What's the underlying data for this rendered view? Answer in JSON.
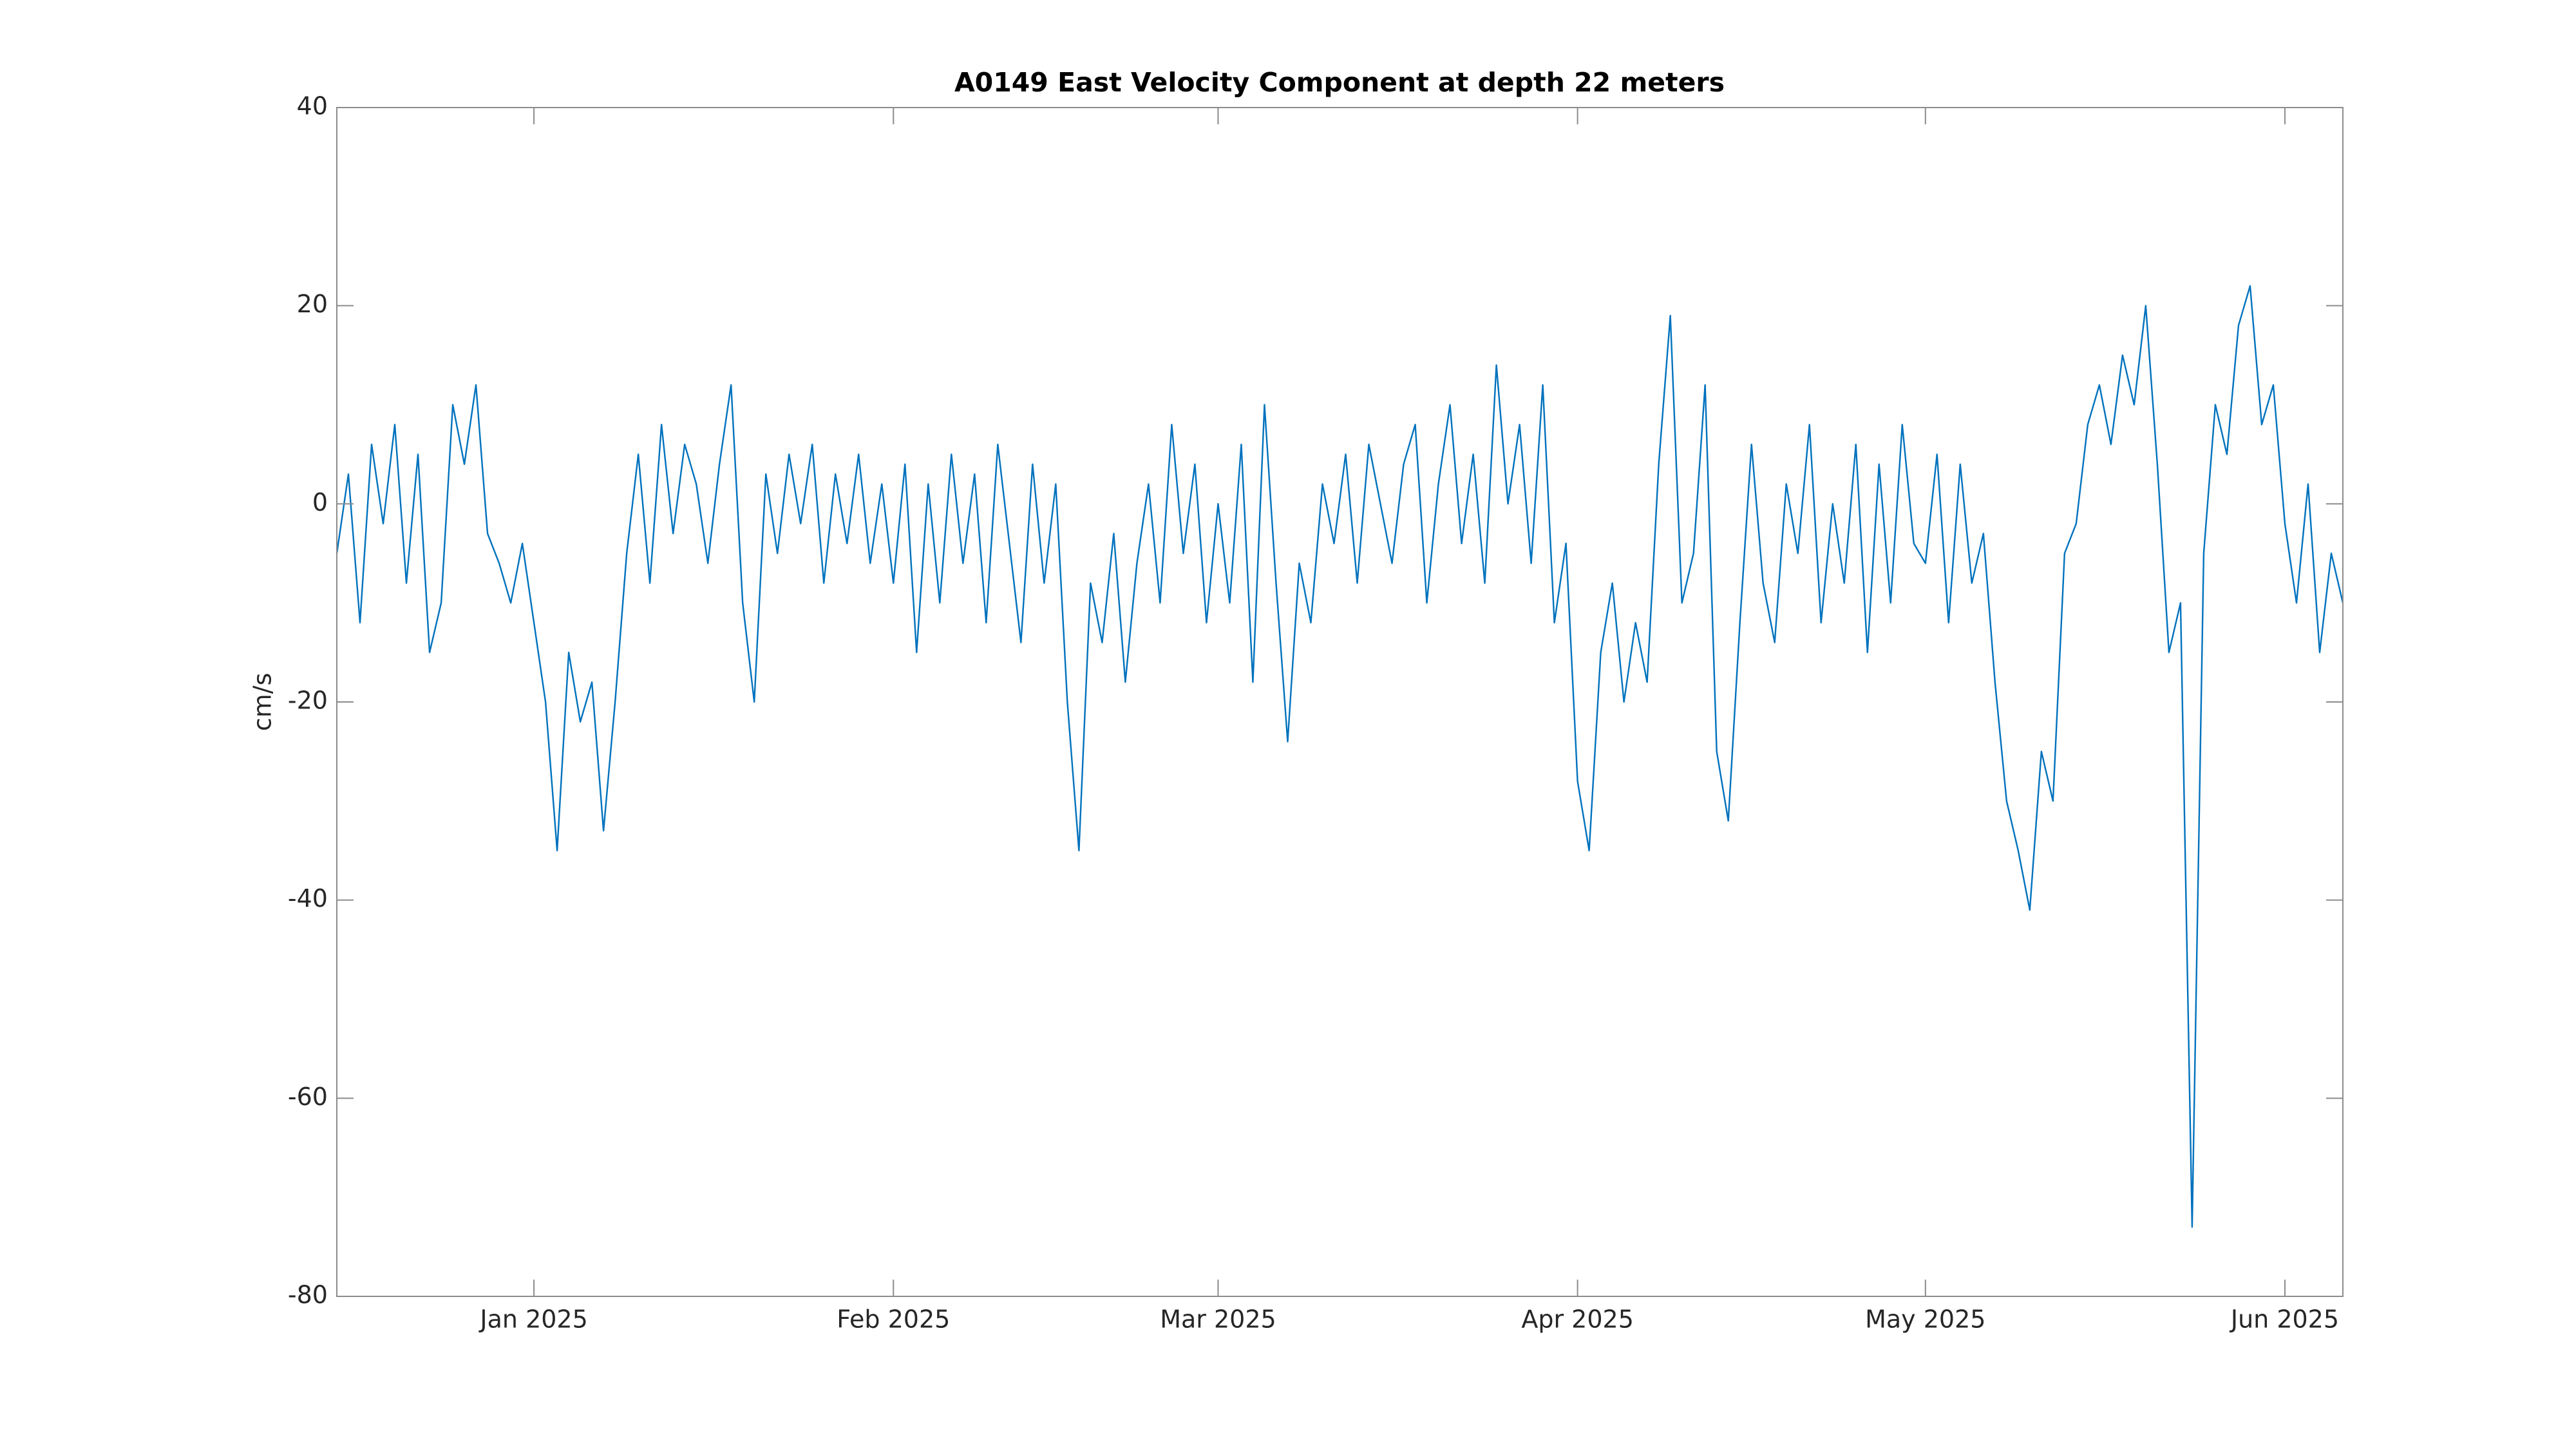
{
  "chart_data": {
    "type": "line",
    "title": "A0149 East Velocity Component at depth 22 meters",
    "ylabel": "cm/s",
    "color": "#0072bd",
    "xlim": [
      "2024-12-15",
      "2025-06-06"
    ],
    "xticks": [
      {
        "value": "2025-01",
        "label": "Jan 2025"
      },
      {
        "value": "2025-02",
        "label": "Feb 2025"
      },
      {
        "value": "2025-03",
        "label": "Mar 2025"
      },
      {
        "value": "2025-04",
        "label": "Apr 2025"
      },
      {
        "value": "2025-05",
        "label": "May 2025"
      },
      {
        "value": "2025-06",
        "label": "Jun 2025"
      }
    ],
    "ylim": [
      -80,
      40
    ],
    "yticks": [
      -80,
      -60,
      -40,
      -20,
      0,
      20,
      40
    ],
    "grid": false,
    "x": [
      "2024-12-15",
      "2024-12-16",
      "2024-12-17",
      "2024-12-18",
      "2024-12-19",
      "2024-12-20",
      "2024-12-21",
      "2024-12-22",
      "2024-12-23",
      "2024-12-24",
      "2024-12-25",
      "2024-12-26",
      "2024-12-27",
      "2024-12-28",
      "2024-12-29",
      "2024-12-30",
      "2024-12-31",
      "2025-01-01",
      "2025-01-02",
      "2025-01-03",
      "2025-01-04",
      "2025-01-05",
      "2025-01-06",
      "2025-01-07",
      "2025-01-08",
      "2025-01-09",
      "2025-01-10",
      "2025-01-11",
      "2025-01-12",
      "2025-01-13",
      "2025-01-14",
      "2025-01-15",
      "2025-01-16",
      "2025-01-17",
      "2025-01-18",
      "2025-01-19",
      "2025-01-20",
      "2025-01-21",
      "2025-01-22",
      "2025-01-23",
      "2025-01-24",
      "2025-01-25",
      "2025-01-26",
      "2025-01-27",
      "2025-01-28",
      "2025-01-29",
      "2025-01-30",
      "2025-01-31",
      "2025-02-01",
      "2025-02-02",
      "2025-02-03",
      "2025-02-04",
      "2025-02-05",
      "2025-02-06",
      "2025-02-07",
      "2025-02-08",
      "2025-02-09",
      "2025-02-10",
      "2025-02-11",
      "2025-02-12",
      "2025-02-13",
      "2025-02-14",
      "2025-02-15",
      "2025-02-16",
      "2025-02-17",
      "2025-02-18",
      "2025-02-19",
      "2025-02-20",
      "2025-02-21",
      "2025-02-22",
      "2025-02-23",
      "2025-02-24",
      "2025-02-25",
      "2025-02-26",
      "2025-02-27",
      "2025-02-28",
      "2025-03-01",
      "2025-03-02",
      "2025-03-03",
      "2025-03-04",
      "2025-03-05",
      "2025-03-06",
      "2025-03-07",
      "2025-03-08",
      "2025-03-09",
      "2025-03-10",
      "2025-03-11",
      "2025-03-12",
      "2025-03-13",
      "2025-03-14",
      "2025-03-15",
      "2025-03-16",
      "2025-03-17",
      "2025-03-18",
      "2025-03-19",
      "2025-03-20",
      "2025-03-21",
      "2025-03-22",
      "2025-03-23",
      "2025-03-24",
      "2025-03-25",
      "2025-03-26",
      "2025-03-27",
      "2025-03-28",
      "2025-03-29",
      "2025-03-30",
      "2025-03-31",
      "2025-04-01",
      "2025-04-02",
      "2025-04-03",
      "2025-04-04",
      "2025-04-05",
      "2025-04-06",
      "2025-04-07",
      "2025-04-08",
      "2025-04-09",
      "2025-04-10",
      "2025-04-11",
      "2025-04-12",
      "2025-04-13",
      "2025-04-14",
      "2025-04-15",
      "2025-04-16",
      "2025-04-17",
      "2025-04-18",
      "2025-04-19",
      "2025-04-20",
      "2025-04-21",
      "2025-04-22",
      "2025-04-23",
      "2025-04-24",
      "2025-04-25",
      "2025-04-26",
      "2025-04-27",
      "2025-04-28",
      "2025-04-29",
      "2025-04-30",
      "2025-05-01",
      "2025-05-02",
      "2025-05-03",
      "2025-05-04",
      "2025-05-05",
      "2025-05-06",
      "2025-05-07",
      "2025-05-08",
      "2025-05-09",
      "2025-05-10",
      "2025-05-11",
      "2025-05-12",
      "2025-05-13",
      "2025-05-14",
      "2025-05-15",
      "2025-05-16",
      "2025-05-17",
      "2025-05-18",
      "2025-05-19",
      "2025-05-20",
      "2025-05-21",
      "2025-05-22",
      "2025-05-23",
      "2025-05-24",
      "2025-05-25",
      "2025-05-26",
      "2025-05-27",
      "2025-05-28",
      "2025-05-29",
      "2025-05-30",
      "2025-05-31",
      "2025-06-01",
      "2025-06-02",
      "2025-06-03",
      "2025-06-04",
      "2025-06-05",
      "2025-06-06"
    ],
    "values": [
      -5,
      3,
      -12,
      6,
      -2,
      8,
      -8,
      5,
      -15,
      -10,
      10,
      4,
      12,
      -3,
      -6,
      -10,
      -4,
      -12,
      -20,
      -35,
      -15,
      -22,
      -18,
      -33,
      -20,
      -5,
      5,
      -8,
      8,
      -3,
      6,
      2,
      -6,
      4,
      12,
      -10,
      -20,
      3,
      -5,
      5,
      -2,
      6,
      -8,
      3,
      -4,
      5,
      -6,
      2,
      -8,
      4,
      -15,
      2,
      -10,
      5,
      -6,
      3,
      -12,
      6,
      -4,
      -14,
      4,
      -8,
      2,
      -20,
      -35,
      -8,
      -14,
      -3,
      -18,
      -6,
      2,
      -10,
      8,
      -5,
      4,
      -12,
      0,
      -10,
      6,
      -18,
      10,
      -8,
      -24,
      -6,
      -12,
      2,
      -4,
      5,
      -8,
      6,
      0,
      -6,
      4,
      8,
      -10,
      2,
      10,
      -4,
      5,
      -8,
      14,
      0,
      8,
      -6,
      12,
      -12,
      -4,
      -28,
      -35,
      -15,
      -8,
      -20,
      -12,
      -18,
      4,
      19,
      -10,
      -5,
      12,
      -25,
      -32,
      -12,
      6,
      -8,
      -14,
      2,
      -5,
      8,
      -12,
      0,
      -8,
      6,
      -15,
      4,
      -10,
      8,
      -4,
      -6,
      5,
      -12,
      4,
      -8,
      -3,
      -18,
      -30,
      -35,
      -41,
      -25,
      -30,
      -5,
      -2,
      8,
      12,
      6,
      15,
      10,
      20,
      4,
      -15,
      -10,
      -73,
      -5,
      10,
      5,
      18,
      22,
      8,
      12,
      -2,
      -10,
      2,
      -15,
      -5,
      -10
    ]
  }
}
